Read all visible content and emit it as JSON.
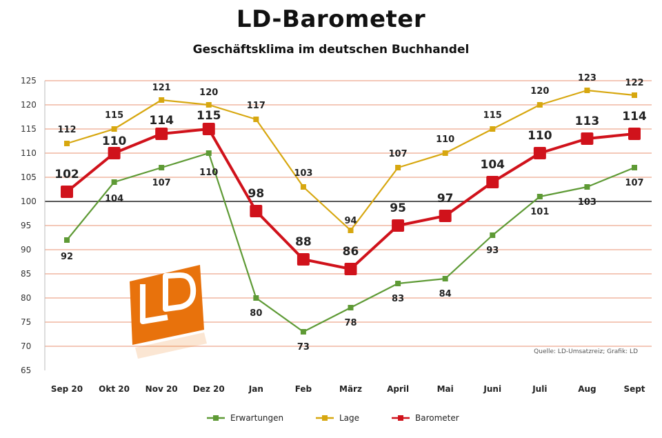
{
  "colors": {
    "erwartungen": "#5e9a35",
    "lage": "#d7a70f",
    "barometer": "#d0121b",
    "grid": "#f4c8b8",
    "baseline": "#555555",
    "logo": "#e8720c"
  },
  "chart_data": {
    "type": "line",
    "title": "LD-Barometer",
    "subtitle": "Geschäftsklima im deutschen Buchhandel",
    "categories": [
      "Sep 20",
      "Okt 20",
      "Nov 20",
      "Dez 20",
      "Jan",
      "Feb",
      "März",
      "April",
      "Mai",
      "Juni",
      "Juli",
      "Aug",
      "Sept"
    ],
    "ylim": [
      65,
      125
    ],
    "yticks": [
      65,
      70,
      75,
      80,
      85,
      90,
      95,
      100,
      105,
      110,
      115,
      120,
      125
    ],
    "baseline": 100,
    "grid": true,
    "series": [
      {
        "name": "Erwartungen",
        "key": "erwartungen",
        "values": [
          92,
          104,
          107,
          110,
          80,
          73,
          78,
          83,
          84,
          93,
          101,
          103,
          107
        ],
        "labels": [
          "92",
          "104",
          "107",
          "110",
          "80",
          "73",
          "78",
          "83",
          "84",
          "93",
          "101",
          "103",
          "107"
        ]
      },
      {
        "name": "Lage",
        "key": "lage",
        "values": [
          112,
          115,
          121,
          120,
          117,
          103,
          94,
          107,
          110,
          115,
          120,
          123,
          122
        ],
        "labels": [
          "112",
          "115",
          "121",
          "120",
          "117",
          "103",
          "94",
          "107",
          "110",
          "115",
          "120",
          "123",
          "122"
        ]
      },
      {
        "name": "Barometer",
        "key": "barometer",
        "values": [
          102,
          110,
          114,
          115,
          98,
          88,
          86,
          95,
          97,
          104,
          110,
          113,
          114
        ],
        "labels": [
          "102",
          "110",
          "114",
          "115",
          "98",
          "88",
          "86",
          "95",
          "97",
          "104",
          "110",
          "113",
          "114"
        ]
      }
    ],
    "legend_position": "bottom-center",
    "source": "Quelle: LD-Umsatzreiz; Grafik: LD"
  },
  "logo": {
    "text": "LD"
  }
}
